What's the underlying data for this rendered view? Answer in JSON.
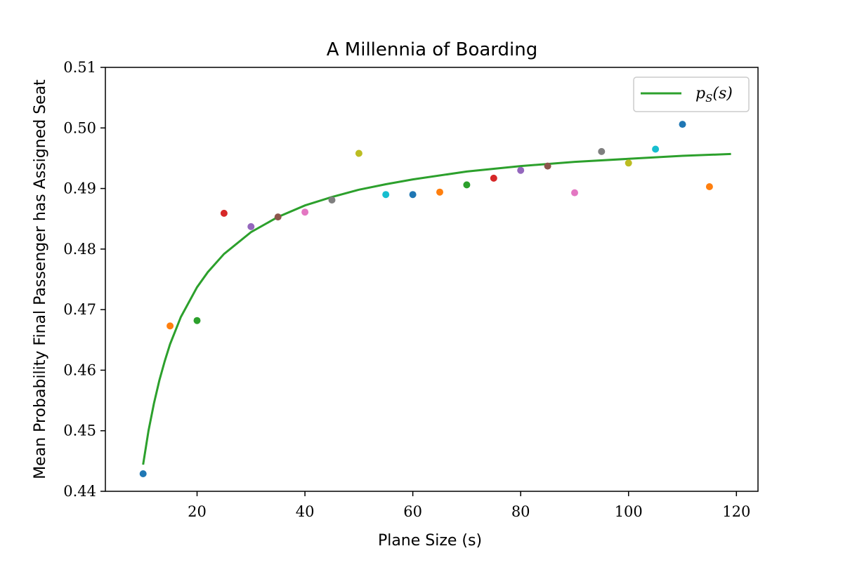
{
  "chart_data": {
    "type": "scatter",
    "title": "A Millennia of Boarding",
    "xlabel": "Plane Size (s)",
    "ylabel": "Mean Probability Final Passenger has Assigned Seat",
    "xlim": [
      3,
      124
    ],
    "ylim": [
      0.44,
      0.51
    ],
    "xticks": [
      20,
      40,
      60,
      80,
      100,
      120
    ],
    "xtick_labels": [
      "20",
      "40",
      "60",
      "80",
      "100",
      "120"
    ],
    "yticks": [
      0.44,
      0.45,
      0.46,
      0.47,
      0.48,
      0.49,
      0.5,
      0.51
    ],
    "ytick_labels": [
      "0.44",
      "0.45",
      "0.46",
      "0.47",
      "0.48",
      "0.49",
      "0.50",
      "0.51"
    ],
    "grid": false,
    "legend_position": "top-right",
    "points": [
      {
        "x": 10,
        "y": 0.4429,
        "color": "#1f77b4"
      },
      {
        "x": 15,
        "y": 0.4673,
        "color": "#ff7f0e"
      },
      {
        "x": 20,
        "y": 0.4682,
        "color": "#2ca02c"
      },
      {
        "x": 25,
        "y": 0.4859,
        "color": "#d62728"
      },
      {
        "x": 30,
        "y": 0.4837,
        "color": "#9467bd"
      },
      {
        "x": 35,
        "y": 0.4853,
        "color": "#8c564b"
      },
      {
        "x": 40,
        "y": 0.4861,
        "color": "#e377c2"
      },
      {
        "x": 45,
        "y": 0.4881,
        "color": "#7f7f7f"
      },
      {
        "x": 50,
        "y": 0.4958,
        "color": "#bcbd22"
      },
      {
        "x": 55,
        "y": 0.489,
        "color": "#17becf"
      },
      {
        "x": 60,
        "y": 0.489,
        "color": "#1f77b4"
      },
      {
        "x": 65,
        "y": 0.4894,
        "color": "#ff7f0e"
      },
      {
        "x": 70,
        "y": 0.4906,
        "color": "#2ca02c"
      },
      {
        "x": 75,
        "y": 0.4917,
        "color": "#d62728"
      },
      {
        "x": 80,
        "y": 0.493,
        "color": "#9467bd"
      },
      {
        "x": 85,
        "y": 0.4937,
        "color": "#8c564b"
      },
      {
        "x": 90,
        "y": 0.4893,
        "color": "#e377c2"
      },
      {
        "x": 95,
        "y": 0.4961,
        "color": "#7f7f7f"
      },
      {
        "x": 100,
        "y": 0.4942,
        "color": "#bcbd22"
      },
      {
        "x": 105,
        "y": 0.4965,
        "color": "#17becf"
      },
      {
        "x": 110,
        "y": 0.5006,
        "color": "#1f77b4"
      },
      {
        "x": 115,
        "y": 0.4903,
        "color": "#ff7f0e"
      }
    ],
    "series": [
      {
        "name": "p_S(s)",
        "type": "line",
        "color": "#2ca02c",
        "x": [
          10,
          11,
          12,
          13,
          14,
          15,
          17,
          20,
          22,
          25,
          30,
          35,
          40,
          45,
          50,
          55,
          60,
          70,
          80,
          90,
          100,
          110,
          119
        ],
        "y": [
          0.4444,
          0.45,
          0.4545,
          0.4583,
          0.4615,
          0.4643,
          0.4688,
          0.4737,
          0.4762,
          0.4792,
          0.4828,
          0.4853,
          0.4872,
          0.4886,
          0.4898,
          0.4907,
          0.4915,
          0.4928,
          0.4937,
          0.4944,
          0.4949,
          0.4954,
          0.4957
        ]
      }
    ]
  }
}
